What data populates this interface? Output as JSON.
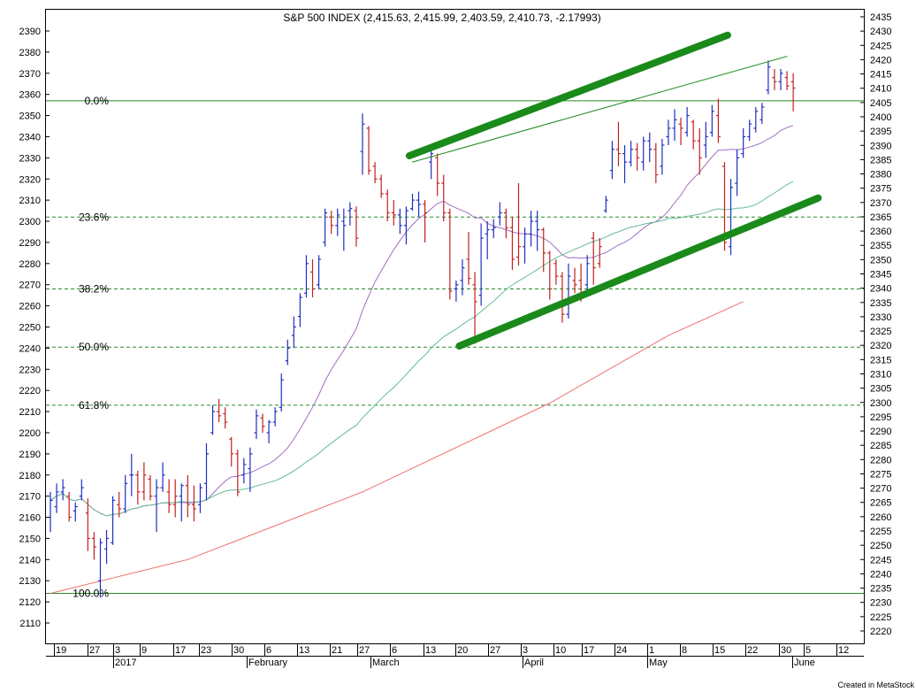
{
  "chart_data": {
    "type": "ohlc",
    "title": "S&P 500 INDEX (2,415.63, 2,415.99, 2,403.59, 2,410.73, -2.17993)",
    "credit": "Created in MetaStock",
    "y_left": {
      "min": 2100,
      "max": 2400,
      "ticks": [
        2110,
        2120,
        2130,
        2140,
        2150,
        2160,
        2170,
        2180,
        2190,
        2200,
        2210,
        2220,
        2230,
        2240,
        2250,
        2260,
        2270,
        2280,
        2290,
        2300,
        2310,
        2320,
        2330,
        2340,
        2350,
        2360,
        2370,
        2380,
        2390
      ]
    },
    "y_right": {
      "ticks": [
        2220,
        2225,
        2230,
        2235,
        2240,
        2245,
        2250,
        2255,
        2260,
        2265,
        2270,
        2275,
        2280,
        2285,
        2290,
        2295,
        2300,
        2305,
        2310,
        2315,
        2320,
        2325,
        2330,
        2335,
        2340,
        2345,
        2350,
        2355,
        2360,
        2365,
        2370,
        2375,
        2380,
        2385,
        2390,
        2395,
        2400,
        2405,
        2410,
        2415,
        2420,
        2425,
        2430,
        2435
      ]
    },
    "x_day_ticks": [
      "19",
      "27",
      "3",
      "9",
      "17",
      "23",
      "30",
      "6",
      "13",
      "21",
      "27",
      "6",
      "13",
      "20",
      "27",
      "3",
      "10",
      "17",
      "24",
      "1",
      "8",
      "15",
      "22",
      "30",
      "5",
      "12"
    ],
    "x_month_labels": [
      "2017",
      "February",
      "March",
      "April",
      "May",
      "June"
    ],
    "fib_levels": [
      {
        "label": "0.0%",
        "value": 2357,
        "style": "solid"
      },
      {
        "label": "23.6%",
        "value": 2302,
        "style": "dashed"
      },
      {
        "label": "38.2%",
        "value": 2268,
        "style": "dashed"
      },
      {
        "label": "50.0%",
        "value": 2240.5,
        "style": "dashed"
      },
      {
        "label": "61.8%",
        "value": 2213,
        "style": "dashed"
      },
      {
        "label": "100.0%",
        "value": 2124,
        "style": "solid"
      }
    ],
    "bars": [
      {
        "o": 2160,
        "h": 2172,
        "l": 2153,
        "c": 2168,
        "color": "blue"
      },
      {
        "o": 2165,
        "h": 2176,
        "l": 2162,
        "c": 2172,
        "color": "blue"
      },
      {
        "o": 2172,
        "h": 2178,
        "l": 2168,
        "c": 2174,
        "color": "blue"
      },
      {
        "o": 2170,
        "h": 2172,
        "l": 2158,
        "c": 2160,
        "color": "red"
      },
      {
        "o": 2163,
        "h": 2167,
        "l": 2158,
        "c": 2165,
        "color": "blue"
      },
      {
        "o": 2170,
        "h": 2178,
        "l": 2168,
        "c": 2174,
        "color": "blue"
      },
      {
        "o": 2162,
        "h": 2169,
        "l": 2144,
        "c": 2150,
        "color": "red"
      },
      {
        "o": 2150,
        "h": 2153,
        "l": 2140,
        "c": 2146,
        "color": "red"
      },
      {
        "o": 2130,
        "h": 2150,
        "l": 2122,
        "c": 2148,
        "color": "blue"
      },
      {
        "o": 2145,
        "h": 2154,
        "l": 2138,
        "c": 2150,
        "color": "blue"
      },
      {
        "o": 2148,
        "h": 2170,
        "l": 2147,
        "c": 2168,
        "color": "blue"
      },
      {
        "o": 2166,
        "h": 2172,
        "l": 2160,
        "c": 2164,
        "color": "red"
      },
      {
        "o": 2164,
        "h": 2180,
        "l": 2162,
        "c": 2176,
        "color": "blue"
      },
      {
        "o": 2180,
        "h": 2190,
        "l": 2170,
        "c": 2180,
        "color": "blue"
      },
      {
        "o": 2180,
        "h": 2182,
        "l": 2166,
        "c": 2172,
        "color": "red"
      },
      {
        "o": 2172,
        "h": 2186,
        "l": 2168,
        "c": 2180,
        "color": "red"
      },
      {
        "o": 2178,
        "h": 2180,
        "l": 2168,
        "c": 2170,
        "color": "red"
      },
      {
        "o": 2170,
        "h": 2178,
        "l": 2153,
        "c": 2174,
        "color": "blue"
      },
      {
        "o": 2174,
        "h": 2186,
        "l": 2172,
        "c": 2180,
        "color": "blue"
      },
      {
        "o": 2172,
        "h": 2178,
        "l": 2162,
        "c": 2166,
        "color": "red"
      },
      {
        "o": 2166,
        "h": 2178,
        "l": 2160,
        "c": 2170,
        "color": "red"
      },
      {
        "o": 2170,
        "h": 2176,
        "l": 2158,
        "c": 2175,
        "color": "blue"
      },
      {
        "o": 2175,
        "h": 2180,
        "l": 2160,
        "c": 2166,
        "color": "red"
      },
      {
        "o": 2166,
        "h": 2175,
        "l": 2158,
        "c": 2164,
        "color": "red"
      },
      {
        "o": 2166,
        "h": 2176,
        "l": 2162,
        "c": 2174,
        "color": "blue"
      },
      {
        "o": 2176,
        "h": 2195,
        "l": 2168,
        "c": 2190,
        "color": "blue"
      },
      {
        "o": 2200,
        "h": 2213,
        "l": 2199,
        "c": 2210,
        "color": "blue"
      },
      {
        "o": 2210,
        "h": 2216,
        "l": 2205,
        "c": 2208,
        "color": "red"
      },
      {
        "o": 2209,
        "h": 2212,
        "l": 2202,
        "c": 2205,
        "color": "red"
      },
      {
        "o": 2197,
        "h": 2198,
        "l": 2184,
        "c": 2190,
        "color": "red"
      },
      {
        "o": 2190,
        "h": 2192,
        "l": 2170,
        "c": 2172,
        "color": "red"
      },
      {
        "o": 2180,
        "h": 2188,
        "l": 2176,
        "c": 2185,
        "color": "blue"
      },
      {
        "o": 2183,
        "h": 2193,
        "l": 2172,
        "c": 2190,
        "color": "blue"
      },
      {
        "o": 2200,
        "h": 2211,
        "l": 2197,
        "c": 2208,
        "color": "blue"
      },
      {
        "o": 2207,
        "h": 2209,
        "l": 2200,
        "c": 2203,
        "color": "red"
      },
      {
        "o": 2200,
        "h": 2206,
        "l": 2195,
        "c": 2205,
        "color": "blue"
      },
      {
        "o": 2205,
        "h": 2212,
        "l": 2203,
        "c": 2210,
        "color": "blue"
      },
      {
        "o": 2212,
        "h": 2228,
        "l": 2210,
        "c": 2225,
        "color": "blue"
      },
      {
        "o": 2234,
        "h": 2244,
        "l": 2232,
        "c": 2240,
        "color": "blue"
      },
      {
        "o": 2246,
        "h": 2255,
        "l": 2240,
        "c": 2250,
        "color": "blue"
      },
      {
        "o": 2255,
        "h": 2266,
        "l": 2250,
        "c": 2264,
        "color": "blue"
      },
      {
        "o": 2266,
        "h": 2284,
        "l": 2264,
        "c": 2280,
        "color": "blue"
      },
      {
        "o": 2276,
        "h": 2282,
        "l": 2264,
        "c": 2268,
        "color": "red"
      },
      {
        "o": 2270,
        "h": 2284,
        "l": 2268,
        "c": 2282,
        "color": "blue"
      },
      {
        "o": 2290,
        "h": 2306,
        "l": 2288,
        "c": 2304,
        "color": "blue"
      },
      {
        "o": 2302,
        "h": 2305,
        "l": 2294,
        "c": 2298,
        "color": "red"
      },
      {
        "o": 2298,
        "h": 2306,
        "l": 2293,
        "c": 2303,
        "color": "blue"
      },
      {
        "o": 2300,
        "h": 2306,
        "l": 2286,
        "c": 2298,
        "color": "blue"
      },
      {
        "o": 2305,
        "h": 2309,
        "l": 2298,
        "c": 2306,
        "color": "blue"
      },
      {
        "o": 2305,
        "h": 2307,
        "l": 2288,
        "c": 2292,
        "color": "red"
      },
      {
        "o": 2333,
        "h": 2351,
        "l": 2322,
        "c": 2346,
        "color": "blue"
      },
      {
        "o": 2344,
        "h": 2345,
        "l": 2322,
        "c": 2324,
        "color": "red"
      },
      {
        "o": 2326,
        "h": 2328,
        "l": 2318,
        "c": 2320,
        "color": "red"
      },
      {
        "o": 2320,
        "h": 2322,
        "l": 2311,
        "c": 2313,
        "color": "red"
      },
      {
        "o": 2313,
        "h": 2315,
        "l": 2300,
        "c": 2304,
        "color": "red"
      },
      {
        "o": 2304,
        "h": 2310,
        "l": 2298,
        "c": 2303,
        "color": "red"
      },
      {
        "o": 2303,
        "h": 2306,
        "l": 2294,
        "c": 2298,
        "color": "blue"
      },
      {
        "o": 2298,
        "h": 2307,
        "l": 2289,
        "c": 2305,
        "color": "blue"
      },
      {
        "o": 2306,
        "h": 2313,
        "l": 2305,
        "c": 2310,
        "color": "blue"
      },
      {
        "o": 2310,
        "h": 2314,
        "l": 2302,
        "c": 2308,
        "color": "blue"
      },
      {
        "o": 2308,
        "h": 2310,
        "l": 2290,
        "c": 2304,
        "color": "red"
      },
      {
        "o": 2328,
        "h": 2335,
        "l": 2320,
        "c": 2332,
        "color": "blue"
      },
      {
        "o": 2330,
        "h": 2332,
        "l": 2312,
        "c": 2318,
        "color": "red"
      },
      {
        "o": 2318,
        "h": 2322,
        "l": 2300,
        "c": 2304,
        "color": "red"
      },
      {
        "o": 2304,
        "h": 2306,
        "l": 2263,
        "c": 2267,
        "color": "red"
      },
      {
        "o": 2268,
        "h": 2272,
        "l": 2262,
        "c": 2270,
        "color": "blue"
      },
      {
        "o": 2272,
        "h": 2282,
        "l": 2265,
        "c": 2278,
        "color": "blue"
      },
      {
        "o": 2282,
        "h": 2295,
        "l": 2270,
        "c": 2273,
        "color": "red"
      },
      {
        "o": 2270,
        "h": 2276,
        "l": 2242,
        "c": 2262,
        "color": "red"
      },
      {
        "o": 2265,
        "h": 2299,
        "l": 2260,
        "c": 2292,
        "color": "blue"
      },
      {
        "o": 2294,
        "h": 2300,
        "l": 2282,
        "c": 2296,
        "color": "blue"
      },
      {
        "o": 2296,
        "h": 2301,
        "l": 2292,
        "c": 2297,
        "color": "blue"
      },
      {
        "o": 2302,
        "h": 2309,
        "l": 2298,
        "c": 2304,
        "color": "blue"
      },
      {
        "o": 2304,
        "h": 2306,
        "l": 2292,
        "c": 2297,
        "color": "red"
      },
      {
        "o": 2297,
        "h": 2302,
        "l": 2277,
        "c": 2282,
        "color": "red"
      },
      {
        "o": 2283,
        "h": 2318,
        "l": 2279,
        "c": 2288,
        "color": "red"
      },
      {
        "o": 2288,
        "h": 2297,
        "l": 2280,
        "c": 2294,
        "color": "blue"
      },
      {
        "o": 2294,
        "h": 2305,
        "l": 2288,
        "c": 2300,
        "color": "blue"
      },
      {
        "o": 2300,
        "h": 2305,
        "l": 2286,
        "c": 2296,
        "color": "blue"
      },
      {
        "o": 2296,
        "h": 2297,
        "l": 2276,
        "c": 2285,
        "color": "red"
      },
      {
        "o": 2285,
        "h": 2286,
        "l": 2263,
        "c": 2268,
        "color": "red"
      },
      {
        "o": 2280,
        "h": 2282,
        "l": 2270,
        "c": 2274,
        "color": "red"
      },
      {
        "o": 2274,
        "h": 2276,
        "l": 2252,
        "c": 2256,
        "color": "red"
      },
      {
        "o": 2256,
        "h": 2280,
        "l": 2254,
        "c": 2274,
        "color": "blue"
      },
      {
        "o": 2272,
        "h": 2278,
        "l": 2266,
        "c": 2270,
        "color": "red"
      },
      {
        "o": 2272,
        "h": 2280,
        "l": 2262,
        "c": 2266,
        "color": "red"
      },
      {
        "o": 2270,
        "h": 2284,
        "l": 2266,
        "c": 2280,
        "color": "blue"
      },
      {
        "o": 2292,
        "h": 2295,
        "l": 2270,
        "c": 2278,
        "color": "red"
      },
      {
        "o": 2280,
        "h": 2292,
        "l": 2278,
        "c": 2288,
        "color": "red"
      },
      {
        "o": 2305,
        "h": 2312,
        "l": 2304,
        "c": 2310,
        "color": "blue"
      },
      {
        "o": 2324,
        "h": 2338,
        "l": 2320,
        "c": 2334,
        "color": "blue"
      },
      {
        "o": 2334,
        "h": 2347,
        "l": 2326,
        "c": 2332,
        "color": "red"
      },
      {
        "o": 2332,
        "h": 2336,
        "l": 2318,
        "c": 2328,
        "color": "blue"
      },
      {
        "o": 2328,
        "h": 2338,
        "l": 2326,
        "c": 2334,
        "color": "blue"
      },
      {
        "o": 2334,
        "h": 2337,
        "l": 2324,
        "c": 2330,
        "color": "red"
      },
      {
        "o": 2328,
        "h": 2340,
        "l": 2324,
        "c": 2338,
        "color": "blue"
      },
      {
        "o": 2338,
        "h": 2342,
        "l": 2328,
        "c": 2334,
        "color": "blue"
      },
      {
        "o": 2334,
        "h": 2337,
        "l": 2318,
        "c": 2322,
        "color": "red"
      },
      {
        "o": 2326,
        "h": 2339,
        "l": 2322,
        "c": 2336,
        "color": "blue"
      },
      {
        "o": 2340,
        "h": 2348,
        "l": 2336,
        "c": 2344,
        "color": "blue"
      },
      {
        "o": 2344,
        "h": 2353,
        "l": 2338,
        "c": 2348,
        "color": "blue"
      },
      {
        "o": 2346,
        "h": 2349,
        "l": 2336,
        "c": 2344,
        "color": "red"
      },
      {
        "o": 2342,
        "h": 2354,
        "l": 2340,
        "c": 2350,
        "color": "blue"
      },
      {
        "o": 2347,
        "h": 2348,
        "l": 2334,
        "c": 2338,
        "color": "red"
      },
      {
        "o": 2338,
        "h": 2344,
        "l": 2322,
        "c": 2330,
        "color": "red"
      },
      {
        "o": 2336,
        "h": 2347,
        "l": 2330,
        "c": 2340,
        "color": "blue"
      },
      {
        "o": 2342,
        "h": 2355,
        "l": 2340,
        "c": 2352,
        "color": "blue"
      },
      {
        "o": 2350,
        "h": 2358,
        "l": 2337,
        "c": 2340,
        "color": "red"
      },
      {
        "o": 2326,
        "h": 2328,
        "l": 2286,
        "c": 2290,
        "color": "red"
      },
      {
        "o": 2288,
        "h": 2320,
        "l": 2284,
        "c": 2316,
        "color": "blue"
      },
      {
        "o": 2318,
        "h": 2334,
        "l": 2312,
        "c": 2330,
        "color": "blue"
      },
      {
        "o": 2332,
        "h": 2344,
        "l": 2330,
        "c": 2340,
        "color": "blue"
      },
      {
        "o": 2340,
        "h": 2348,
        "l": 2338,
        "c": 2346,
        "color": "blue"
      },
      {
        "o": 2344,
        "h": 2354,
        "l": 2342,
        "c": 2352,
        "color": "blue"
      },
      {
        "o": 2348,
        "h": 2356,
        "l": 2346,
        "c": 2354,
        "color": "blue"
      },
      {
        "o": 2362,
        "h": 2376,
        "l": 2360,
        "c": 2373,
        "color": "blue"
      },
      {
        "o": 2368,
        "h": 2372,
        "l": 2362,
        "c": 2366,
        "color": "red"
      },
      {
        "o": 2366,
        "h": 2372,
        "l": 2362,
        "c": 2370,
        "color": "blue"
      },
      {
        "o": 2368,
        "h": 2371,
        "l": 2362,
        "c": 2364,
        "color": "red"
      },
      {
        "o": 2366,
        "h": 2370,
        "l": 2352,
        "c": 2363,
        "color": "red"
      }
    ],
    "moving_averages": [
      {
        "color": "#a070c0",
        "period": 20
      },
      {
        "color": "#66bb99",
        "period": 50
      },
      {
        "color": "#f07070",
        "points": [
          [
            2124,
            0
          ],
          [
            2140,
            22
          ],
          [
            2172,
            50
          ],
          [
            2214,
            80
          ],
          [
            2246,
            99
          ],
          [
            2262,
            111
          ]
        ]
      }
    ],
    "trend_channels": [
      {
        "color": "#1a8a1a",
        "x1": 57.5,
        "y1": 2331,
        "x2": 108.5,
        "y2": 2388
      },
      {
        "color": "#1a8a1a",
        "x1": 65.5,
        "y1": 2241,
        "x2": 123,
        "y2": 2311
      },
      {
        "color": "#1a8a1a",
        "x1": 58,
        "y1": 2328,
        "x2": 118,
        "y2": 2378,
        "thin": true
      }
    ]
  }
}
